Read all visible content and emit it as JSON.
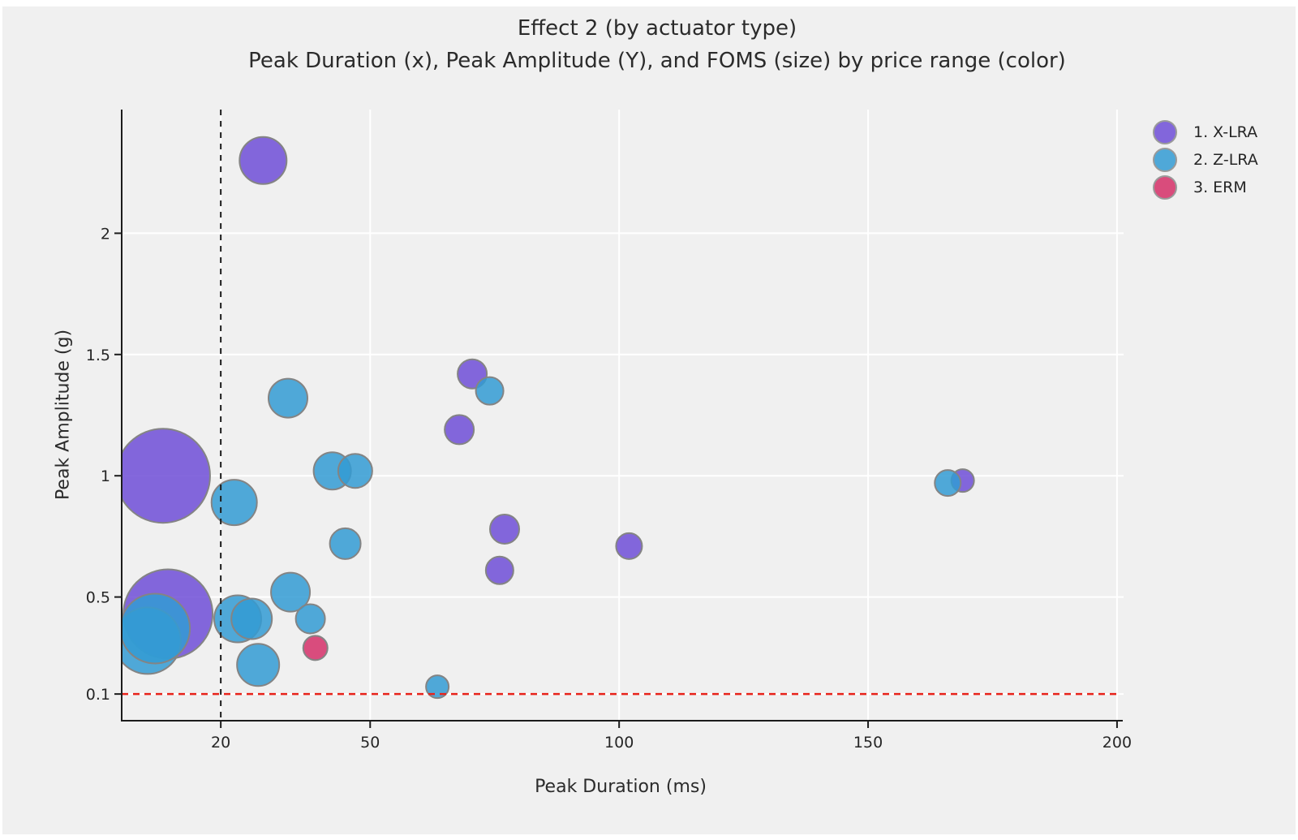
{
  "page": {
    "background": "#ffffff",
    "figure_background": "#f0f0f0"
  },
  "title": {
    "line1": "Effect 2 (by actuator type)",
    "line2": "Peak Duration (x), Peak Amplitude (Y), and FOMS (size) by price range (color)"
  },
  "legend": {
    "items": [
      {
        "label": "1. X-LRA",
        "color": "#8266DB"
      },
      {
        "label": "2. Z-LRA",
        "color": "#4FA8D8"
      },
      {
        "label": "3. ERM",
        "color": "#D94C7C"
      }
    ]
  },
  "chart_data": {
    "type": "scatter",
    "title": "Effect 2 (by actuator type)",
    "subtitle": "Peak Duration (x), Peak Amplitude (Y), and FOMS (size) by price range (color)",
    "xlabel": "Peak Duration (ms)",
    "ylabel": "Peak Amplitude (g)",
    "size_encoding": "FOMS",
    "color_encoding": "price range",
    "grid": true,
    "gridline_color": "#ffffff",
    "axis_color": "#1c1c1c",
    "tick_label_color": "#262626",
    "xlim": [
      0.1,
      200.5
    ],
    "ylim": [
      -0.01,
      2.51
    ],
    "x_ticks": [
      {
        "value": 20,
        "label": "20"
      },
      {
        "value": 50,
        "label": "50"
      },
      {
        "value": 100,
        "label": "100"
      },
      {
        "value": 150,
        "label": "150"
      },
      {
        "value": 200,
        "label": "200"
      }
    ],
    "y_ticks": [
      {
        "value": 0.1,
        "label": "0.1"
      },
      {
        "value": 0.5,
        "label": "0.5"
      },
      {
        "value": 1,
        "label": "1"
      },
      {
        "value": 1.5,
        "label": "1.5"
      },
      {
        "value": 2,
        "label": "2"
      }
    ],
    "reference_lines": [
      {
        "orientation": "vertical",
        "x": 20,
        "style": "dashed",
        "color": "#1c1c1c"
      },
      {
        "orientation": "horizontal",
        "y": 0.1,
        "style": "dashed",
        "color": "#e8231b"
      }
    ],
    "bubble_opacity": 0.85,
    "bubble_stroke": "#848484",
    "series": [
      {
        "name": "1. X-LRA",
        "color": "#6E4ED7",
        "points": [
          {
            "x": 28.5,
            "y": 2.3,
            "r": 29
          },
          {
            "x": 8.4,
            "y": 1.0,
            "r": 58
          },
          {
            "x": 9.4,
            "y": 0.43,
            "r": 55
          },
          {
            "x": 70.5,
            "y": 1.42,
            "r": 18
          },
          {
            "x": 67.9,
            "y": 1.19,
            "r": 18
          },
          {
            "x": 77,
            "y": 0.78,
            "r": 18
          },
          {
            "x": 76,
            "y": 0.61,
            "r": 17
          },
          {
            "x": 102,
            "y": 0.71,
            "r": 16
          },
          {
            "x": 169,
            "y": 0.98,
            "r": 14
          }
        ]
      },
      {
        "name": "2. Z-LRA",
        "color": "#339BD4",
        "points": [
          {
            "x": 5.3,
            "y": 0.32,
            "r": 41
          },
          {
            "x": 6.8,
            "y": 0.37,
            "r": 43
          },
          {
            "x": 33.5,
            "y": 1.32,
            "r": 24
          },
          {
            "x": 74,
            "y": 1.35,
            "r": 17
          },
          {
            "x": 22.7,
            "y": 0.89,
            "r": 28
          },
          {
            "x": 42.4,
            "y": 1.02,
            "r": 23
          },
          {
            "x": 47,
            "y": 1.02,
            "r": 21
          },
          {
            "x": 45,
            "y": 0.72,
            "r": 19
          },
          {
            "x": 23.4,
            "y": 0.41,
            "r": 29
          },
          {
            "x": 26.2,
            "y": 0.41,
            "r": 25
          },
          {
            "x": 34,
            "y": 0.52,
            "r": 24
          },
          {
            "x": 38,
            "y": 0.41,
            "r": 18
          },
          {
            "x": 27.5,
            "y": 0.22,
            "r": 26
          },
          {
            "x": 63.5,
            "y": 0.13,
            "r": 14
          },
          {
            "x": 166,
            "y": 0.97,
            "r": 16
          }
        ]
      },
      {
        "name": "3. ERM",
        "color": "#D52F68",
        "points": [
          {
            "x": 39,
            "y": 0.29,
            "r": 15
          }
        ]
      }
    ]
  }
}
